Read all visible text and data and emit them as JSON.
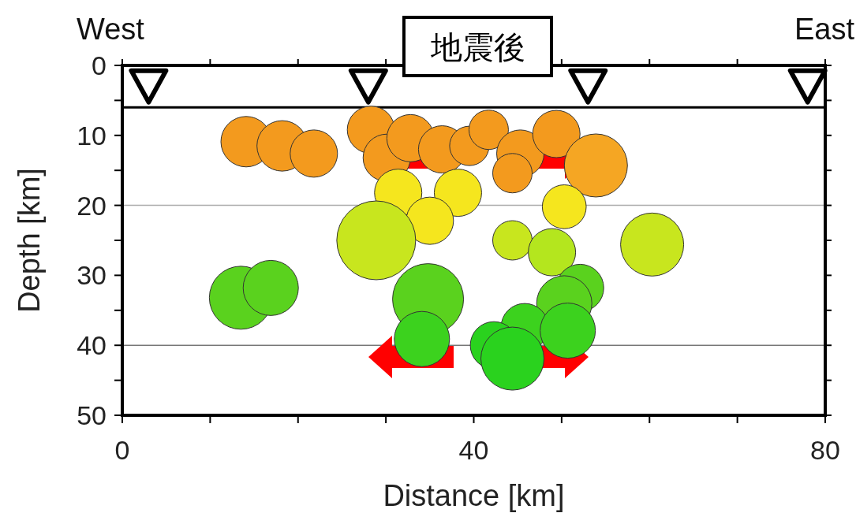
{
  "chart_data": {
    "type": "bubble",
    "title": "地震後",
    "xlabel": "Distance [km]",
    "ylabel": "Depth [km]",
    "annotations": [
      "West",
      "East"
    ],
    "xlim": [
      0,
      80
    ],
    "ylim": [
      50,
      0
    ],
    "xticks": [
      0,
      {
        "value": 10,
        "label": null
      },
      {
        "value": 20,
        "label": null
      },
      {
        "value": 30,
        "label": null
      },
      40,
      {
        "value": 50,
        "label": null
      },
      {
        "value": 60,
        "label": null
      },
      {
        "value": 70,
        "label": null
      },
      80
    ],
    "yticks": [
      0,
      {
        "value": 5,
        "label": null
      },
      10,
      {
        "value": 15,
        "label": null
      },
      20,
      {
        "value": 25,
        "label": null
      },
      30,
      {
        "value": 35,
        "label": null
      },
      40,
      {
        "value": 45,
        "label": null
      },
      50
    ],
    "ref_lines": [
      {
        "axis": "y",
        "value": 6,
        "color": "#000000"
      },
      {
        "axis": "y",
        "value": 20,
        "color": "#aaaaaa"
      },
      {
        "axis": "y",
        "value": 40,
        "color": "#777777"
      }
    ],
    "series": [
      {
        "type": "bubble",
        "x": [
          14.1,
          18.2,
          21.8,
          28.3,
          30.1,
          32.8,
          36.4,
          39.5,
          41.7,
          45.3,
          49.4,
          53.9,
          44.4,
          31.4,
          38.2,
          35.0,
          50.3,
          28.9,
          44.4,
          48.9,
          60.3,
          13.5,
          16.9,
          34.8,
          52.1,
          50.3,
          34.1,
          45.8,
          50.7,
          42.3,
          44.4
        ],
        "values": [
          10.9,
          11.5,
          12.6,
          9.2,
          13.2,
          10.4,
          12.0,
          11.5,
          9.2,
          12.6,
          9.8,
          14.3,
          15.4,
          18.2,
          18.2,
          22.2,
          20.2,
          25.0,
          25.0,
          26.7,
          25.6,
          33.2,
          31.8,
          33.4,
          31.8,
          34.0,
          39.1,
          37.4,
          37.9,
          40.0,
          41.9
        ],
        "sizes": [
          0.41,
          0.41,
          0.36,
          0.36,
          0.36,
          0.36,
          0.36,
          0.25,
          0.25,
          0.36,
          0.36,
          0.64,
          0.25,
          0.36,
          0.36,
          0.36,
          0.31,
          1,
          0.25,
          0.36,
          0.64,
          0.64,
          0.49,
          0.81,
          0.36,
          0.49,
          0.49,
          0.36,
          0.49,
          0.36,
          0.64
        ],
        "colors": [
          "#f39a1e",
          "#f39a1e",
          "#f39a1e",
          "#f39a1e",
          "#f39a1e",
          "#f39a1e",
          "#f39a1e",
          "#f39a1e",
          "#f39a1e",
          "#f39a1e",
          "#f39a1e",
          "#f5a623",
          "#f39a1e",
          "#f5e61e",
          "#f5e61e",
          "#f5e61e",
          "#f5e61e",
          "#c8e61e",
          "#c8e61e",
          "#b4e61e",
          "#c8e61e",
          "#5ad21e",
          "#5ad21e",
          "#5ad21e",
          "#5ad21e",
          "#5ad21e",
          "#3cd21e",
          "#3cd21e",
          "#3cd21e",
          "#2ad21e",
          "#2ad21e"
        ]
      },
      {
        "type": "scatter",
        "marker": "triangle",
        "color": "#000000",
        "x": [
          3,
          28,
          53,
          78
        ],
        "values": [
          3,
          3,
          3,
          3
        ]
      }
    ]
  }
}
